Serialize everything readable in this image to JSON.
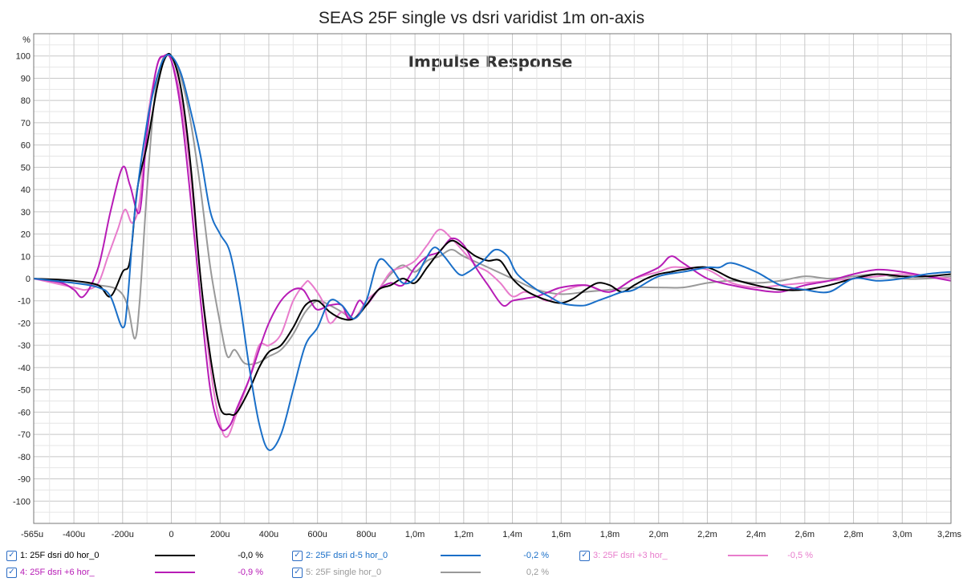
{
  "chart_data": {
    "type": "line",
    "title": "SEAS 25F single vs dsri varidist 1m on-axis",
    "subtitle": "Impulse Response",
    "ylabel": "%",
    "xlim": [
      -0.565,
      3.2
    ],
    "ylim": [
      -110,
      110
    ],
    "yticks": [
      100,
      90,
      80,
      70,
      60,
      50,
      40,
      30,
      20,
      10,
      0,
      -10,
      -20,
      -30,
      -40,
      -50,
      -60,
      -70,
      -80,
      -90,
      -100
    ],
    "xtick_values": [
      -0.565,
      -0.4,
      -0.2,
      0,
      0.2,
      0.4,
      0.6,
      0.8,
      1.0,
      1.2,
      1.4,
      1.6,
      1.8,
      2.0,
      2.2,
      2.4,
      2.6,
      2.8,
      3.0,
      3.2
    ],
    "xtick_labels": [
      "-565u",
      "-400u",
      "-200u",
      "0",
      "200u",
      "400u",
      "600u",
      "800u",
      "1,0m",
      "1,2m",
      "1,4m",
      "1,6m",
      "1,8m",
      "2,0m",
      "2,2m",
      "2,4m",
      "2,6m",
      "2,8m",
      "3,0m",
      "3,2ms"
    ],
    "grid": true,
    "series": [
      {
        "name": "1: 25F dsri d0 hor_0",
        "color": "#000000",
        "value_label": "-0,0 %",
        "x": [
          -0.565,
          -0.4,
          -0.3,
          -0.25,
          -0.2,
          -0.17,
          -0.14,
          -0.1,
          -0.06,
          -0.03,
          0,
          0.04,
          0.08,
          0.12,
          0.16,
          0.2,
          0.24,
          0.27,
          0.32,
          0.36,
          0.4,
          0.45,
          0.5,
          0.55,
          0.6,
          0.65,
          0.7,
          0.75,
          0.8,
          0.85,
          0.9,
          0.95,
          1.0,
          1.05,
          1.1,
          1.15,
          1.2,
          1.25,
          1.3,
          1.35,
          1.4,
          1.45,
          1.5,
          1.55,
          1.6,
          1.65,
          1.7,
          1.75,
          1.8,
          1.85,
          1.9,
          1.95,
          2.0,
          2.05,
          2.1,
          2.2,
          2.3,
          2.4,
          2.5,
          2.6,
          2.7,
          2.8,
          2.9,
          3.0,
          3.1,
          3.2
        ],
        "y": [
          0,
          -1,
          -3,
          -8,
          3,
          8,
          40,
          60,
          85,
          98,
          100,
          85,
          50,
          0,
          -35,
          -58,
          -61,
          -60,
          -50,
          -40,
          -33,
          -30,
          -22,
          -12,
          -10,
          -15,
          -18,
          -18,
          -12,
          -5,
          -3,
          0,
          -2,
          5,
          12,
          17,
          14,
          10,
          8,
          8,
          0,
          -5,
          -8,
          -10,
          -11,
          -9,
          -5,
          -2,
          -3,
          -6,
          -3,
          0,
          2,
          3,
          4,
          5,
          0,
          -3,
          -5,
          -5,
          -3,
          0,
          2,
          1,
          1,
          2
        ]
      },
      {
        "name": "2: 25F dsri d-5 hor_0",
        "color": "#1a6fc8",
        "value_label": "-0,2 %",
        "x": [
          -0.565,
          -0.4,
          -0.3,
          -0.25,
          -0.2,
          -0.18,
          -0.15,
          -0.1,
          -0.06,
          -0.03,
          0,
          0.04,
          0.08,
          0.12,
          0.16,
          0.2,
          0.24,
          0.28,
          0.32,
          0.36,
          0.4,
          0.45,
          0.5,
          0.55,
          0.6,
          0.65,
          0.7,
          0.75,
          0.8,
          0.85,
          0.9,
          0.95,
          1.0,
          1.04,
          1.08,
          1.12,
          1.18,
          1.22,
          1.28,
          1.33,
          1.38,
          1.42,
          1.5,
          1.55,
          1.6,
          1.65,
          1.7,
          1.75,
          1.8,
          1.85,
          1.9,
          2.0,
          2.1,
          2.2,
          2.25,
          2.3,
          2.4,
          2.5,
          2.6,
          2.7,
          2.8,
          2.9,
          3.0,
          3.1,
          3.2
        ],
        "y": [
          0,
          -2,
          -4,
          -8,
          -22,
          -10,
          30,
          70,
          90,
          99,
          100,
          92,
          75,
          55,
          30,
          20,
          12,
          -10,
          -40,
          -65,
          -77,
          -70,
          -50,
          -30,
          -22,
          -10,
          -12,
          -18,
          -10,
          8,
          5,
          -2,
          0,
          8,
          14,
          10,
          2,
          3,
          8,
          13,
          10,
          2,
          -5,
          -8,
          -11,
          -12,
          -12,
          -10,
          -8,
          -6,
          -5,
          1,
          3,
          5,
          5,
          7,
          3,
          -3,
          -5,
          -6,
          0,
          -1,
          0,
          2,
          3
        ]
      },
      {
        "name": "3: 25F dsri +3 hor_",
        "color": "#e87ccc",
        "value_label": "-0,5 %",
        "x": [
          -0.565,
          -0.4,
          -0.35,
          -0.3,
          -0.26,
          -0.22,
          -0.19,
          -0.16,
          -0.13,
          -0.1,
          -0.06,
          -0.03,
          0,
          0.04,
          0.08,
          0.12,
          0.16,
          0.2,
          0.23,
          0.27,
          0.32,
          0.36,
          0.4,
          0.45,
          0.5,
          0.55,
          0.57,
          0.62,
          0.65,
          0.7,
          0.75,
          0.8,
          0.85,
          0.9,
          0.95,
          1.0,
          1.05,
          1.1,
          1.15,
          1.2,
          1.25,
          1.3,
          1.35,
          1.4,
          1.45,
          1.5,
          1.55,
          1.6,
          1.7,
          1.8,
          1.9,
          2.0,
          2.05,
          2.1,
          2.2,
          2.3,
          2.4,
          2.5,
          2.6,
          2.7,
          2.8,
          2.9,
          3.0,
          3.1,
          3.2
        ],
        "y": [
          0,
          -4,
          -5,
          -2,
          10,
          22,
          31,
          25,
          35,
          70,
          95,
          100,
          98,
          80,
          45,
          0,
          -40,
          -65,
          -71,
          -60,
          -45,
          -30,
          -30,
          -25,
          -10,
          -2,
          -2,
          -10,
          -20,
          -15,
          -18,
          -10,
          -5,
          3,
          5,
          8,
          15,
          22,
          18,
          12,
          6,
          3,
          -2,
          -8,
          -6,
          -8,
          -10,
          -6,
          -3,
          -6,
          0,
          3,
          5,
          5,
          4,
          -2,
          -4,
          -3,
          -2,
          -1,
          0,
          1,
          2,
          1,
          0
        ]
      },
      {
        "name": "4: 25F dsri +6 hor_",
        "color": "#b71cb6",
        "value_label": "-0,9 %",
        "x": [
          -0.565,
          -0.45,
          -0.4,
          -0.36,
          -0.3,
          -0.25,
          -0.2,
          -0.17,
          -0.13,
          -0.1,
          -0.06,
          -0.03,
          0,
          0.04,
          0.08,
          0.12,
          0.16,
          0.2,
          0.24,
          0.27,
          0.32,
          0.36,
          0.4,
          0.45,
          0.5,
          0.54,
          0.57,
          0.6,
          0.65,
          0.7,
          0.73,
          0.77,
          0.8,
          0.85,
          0.9,
          0.95,
          1.0,
          1.05,
          1.1,
          1.15,
          1.2,
          1.25,
          1.3,
          1.36,
          1.4,
          1.45,
          1.5,
          1.55,
          1.6,
          1.7,
          1.8,
          1.9,
          2.0,
          2.05,
          2.1,
          2.2,
          2.3,
          2.4,
          2.5,
          2.6,
          2.7,
          2.8,
          2.9,
          3.0,
          3.1,
          3.2
        ],
        "y": [
          0,
          -2,
          -5,
          -8,
          5,
          30,
          50,
          42,
          30,
          65,
          95,
          100,
          98,
          75,
          35,
          -10,
          -50,
          -67,
          -66,
          -58,
          -45,
          -32,
          -20,
          -10,
          -5,
          -5,
          -10,
          -14,
          -12,
          -12,
          -18,
          -10,
          -12,
          -5,
          -2,
          -3,
          5,
          10,
          12,
          18,
          15,
          5,
          -3,
          -12,
          -10,
          -9,
          -8,
          -6,
          -4,
          -3,
          -6,
          0,
          5,
          10,
          7,
          0,
          -3,
          -5,
          -6,
          -3,
          -1,
          2,
          4,
          3,
          1,
          -1
        ]
      },
      {
        "name": "5: 25F single hor_0",
        "color": "#999999",
        "value_label": "0,2 %",
        "x": [
          -0.565,
          -0.4,
          -0.3,
          -0.22,
          -0.18,
          -0.15,
          -0.13,
          -0.1,
          -0.07,
          -0.04,
          -0.02,
          0,
          0.04,
          0.08,
          0.12,
          0.16,
          0.2,
          0.23,
          0.26,
          0.3,
          0.35,
          0.4,
          0.45,
          0.5,
          0.55,
          0.6,
          0.65,
          0.7,
          0.75,
          0.8,
          0.85,
          0.9,
          0.95,
          1.0,
          1.05,
          1.1,
          1.15,
          1.2,
          1.3,
          1.4,
          1.5,
          1.6,
          1.7,
          1.8,
          1.9,
          2.0,
          2.1,
          2.2,
          2.3,
          2.4,
          2.5,
          2.6,
          2.7,
          2.8,
          2.9,
          3.0,
          3.1,
          3.2
        ],
        "y": [
          0,
          -2,
          -3,
          -5,
          -12,
          -27,
          -10,
          40,
          80,
          97,
          100,
          100,
          90,
          70,
          40,
          5,
          -20,
          -35,
          -32,
          -38,
          -38,
          -35,
          -32,
          -25,
          -15,
          -10,
          -12,
          -15,
          -18,
          -12,
          -5,
          2,
          6,
          3,
          8,
          10,
          13,
          10,
          5,
          0,
          -5,
          -7,
          -6,
          -5,
          -4,
          -4,
          -4,
          -2,
          -1,
          -2,
          -1,
          1,
          0,
          1,
          2,
          0,
          0,
          1
        ]
      }
    ]
  }
}
